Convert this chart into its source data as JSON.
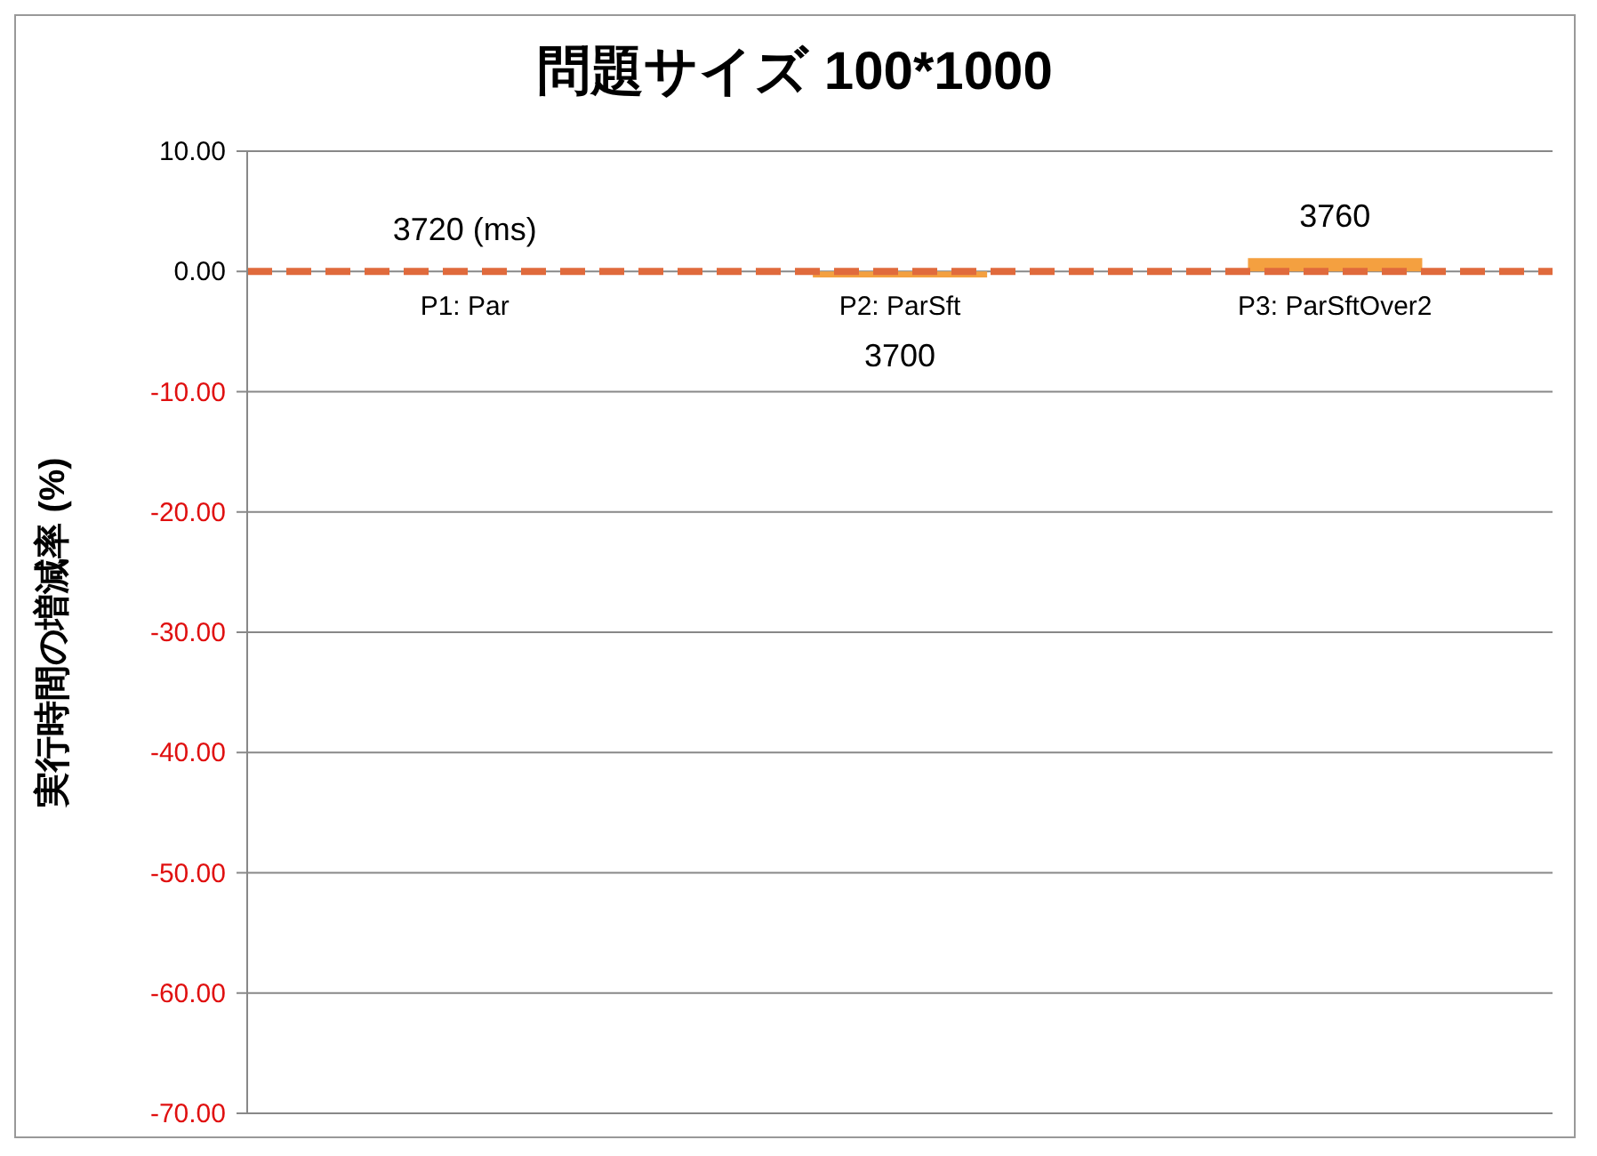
{
  "chart_data": {
    "type": "bar",
    "title": "問題サイズ 100*1000",
    "ylabel": "実行時間の増減率 (%)",
    "categories": [
      "P1: Par",
      "P2: ParSft",
      "P3: ParSftOver2"
    ],
    "values": [
      0,
      -0.5,
      1.1
    ],
    "color": "#f4a040",
    "annotations": [
      {
        "text": "3720 (ms)",
        "x": "P1: Par",
        "y": 0
      },
      {
        "text": "3700",
        "x": "P2: ParSft",
        "y": -0.5
      },
      {
        "text": "3760",
        "x": "P3: ParSftOver2",
        "y": 1.1
      }
    ],
    "ylim": [
      -70,
      10
    ],
    "yticks": [
      {
        "value": 10,
        "label": "10.00"
      },
      {
        "value": 0,
        "label": "0.00"
      },
      {
        "value": -10,
        "label": "-10.00"
      },
      {
        "value": -20,
        "label": "-20.00"
      },
      {
        "value": -30,
        "label": "-30.00"
      },
      {
        "value": -40,
        "label": "-40.00"
      },
      {
        "value": -50,
        "label": "-50.00"
      },
      {
        "value": -60,
        "label": "-60.00"
      },
      {
        "value": -70,
        "label": "-70.00"
      }
    ],
    "grid": "y",
    "ref_lines": [
      {
        "axis": "y",
        "value": 0,
        "color": "#e06a3c",
        "line_style": "dashed"
      }
    ]
  }
}
